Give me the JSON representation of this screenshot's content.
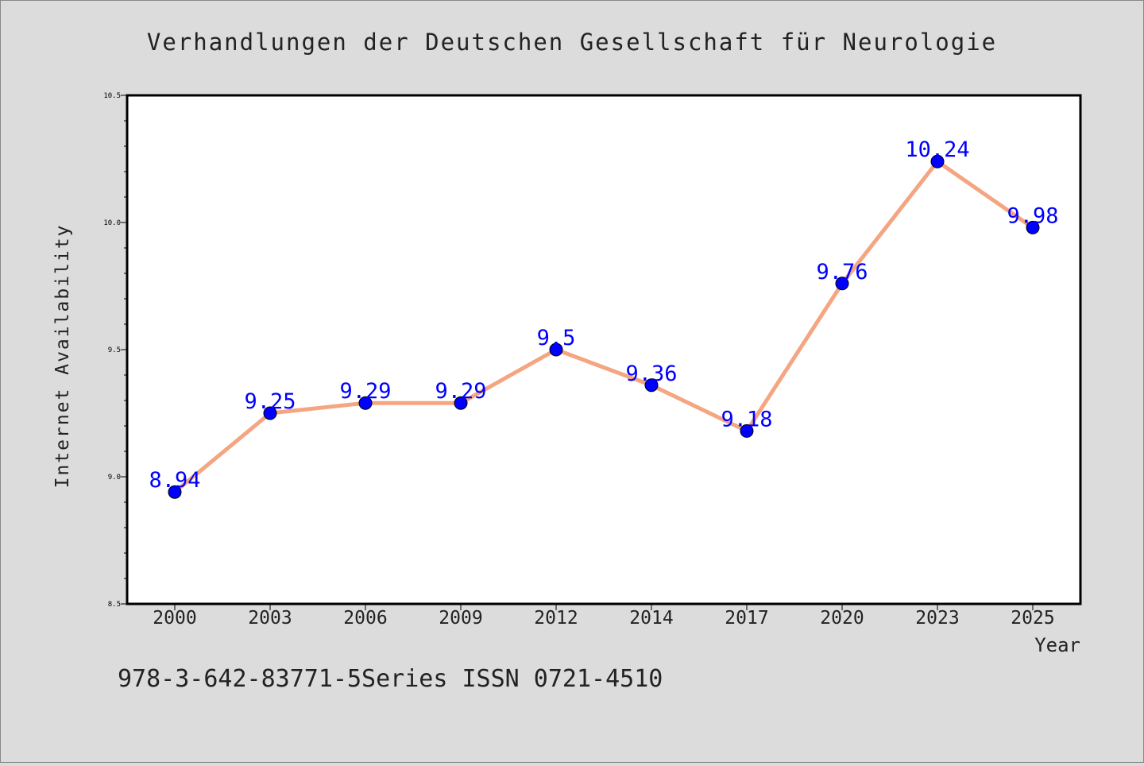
{
  "chart_data": {
    "type": "line",
    "title": "Verhandlungen der Deutschen Gesellschaft für Neurologie",
    "xlabel": "Year",
    "ylabel": "Internet Availability",
    "categories": [
      "2000",
      "2003",
      "2006",
      "2009",
      "2012",
      "2014",
      "2017",
      "2020",
      "2023",
      "2025"
    ],
    "series": [
      {
        "values": [
          8.94,
          9.25,
          9.29,
          9.29,
          9.5,
          9.36,
          9.18,
          9.76,
          10.24,
          9.98
        ]
      }
    ],
    "data_labels": [
      "8.94",
      "9.25",
      "9.29",
      "9.29",
      "9.5",
      "9.36",
      "9.18",
      "9.76",
      "10.24",
      "9.98"
    ],
    "ylim": [
      8.5,
      10.5
    ],
    "y_ticks": [
      "8.5",
      "9.0",
      "9.5",
      "10.0",
      "10.5"
    ],
    "grid": false,
    "footer": "978-3-642-83771-5Series ISSN 0721-4510",
    "colors": {
      "background": "#dcdcdc",
      "plot_background": "#ffffff",
      "line": "#f4a582",
      "marker": "#0000ff",
      "data_label": "#0000ff",
      "text": "#222222"
    }
  }
}
